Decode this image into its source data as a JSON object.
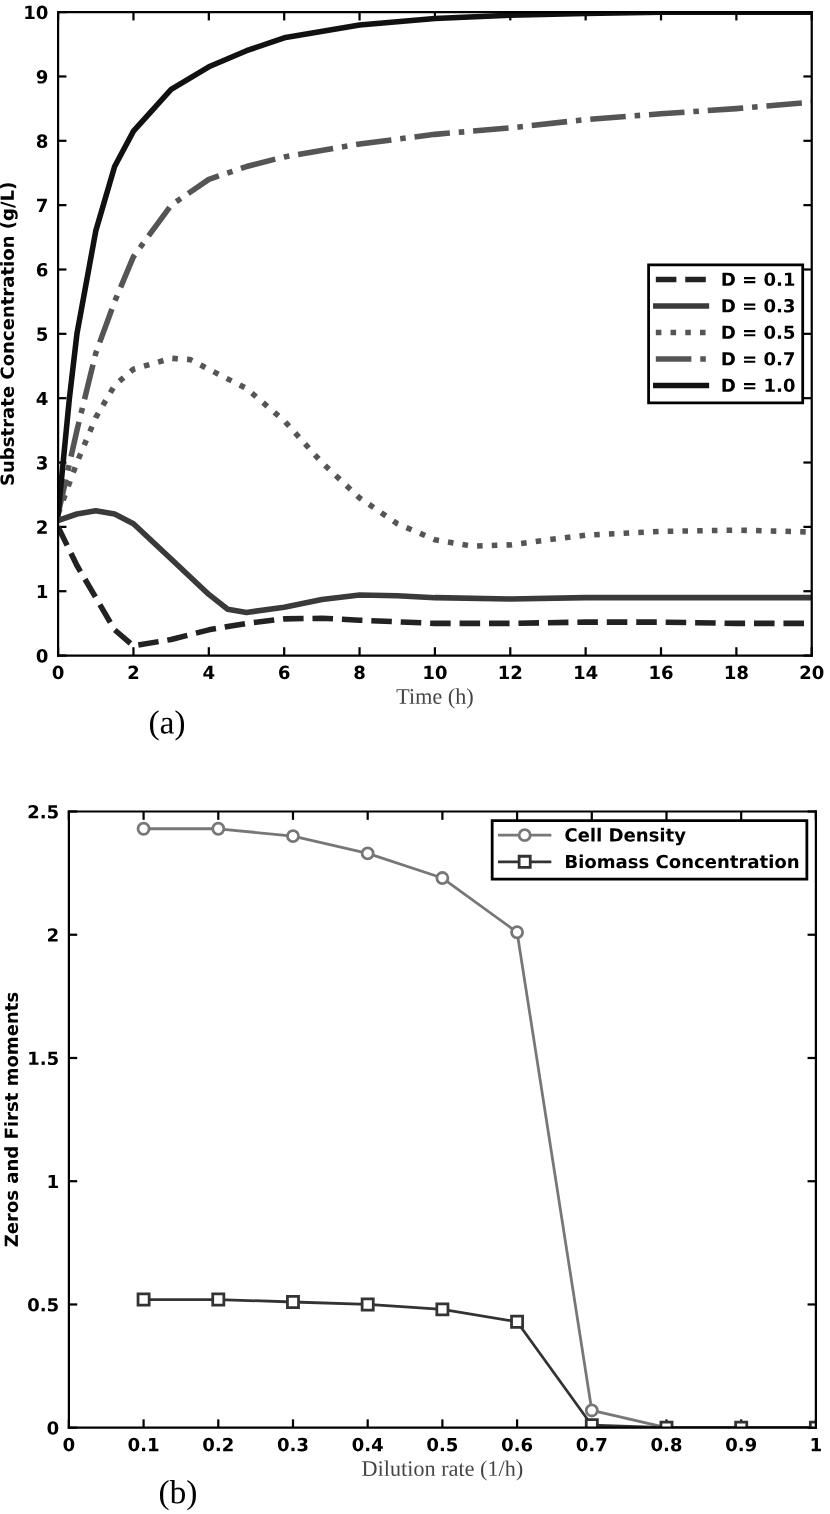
{
  "chart_data": [
    {
      "type": "line",
      "xlabel": "Time (h)",
      "ylabel": "Substrate Concentration (g/L)",
      "annotations": [
        "(a)"
      ],
      "xlim": [
        0,
        20
      ],
      "ylim": [
        0,
        10
      ],
      "xticks": [
        0,
        2,
        4,
        6,
        8,
        10,
        12,
        14,
        16,
        18,
        20
      ],
      "yticks": [
        0,
        1,
        2,
        3,
        4,
        5,
        6,
        7,
        8,
        9,
        10
      ],
      "legend": "right",
      "marker": "none",
      "series": [
        {
          "name": "D = 0.1",
          "color": "#222222",
          "line_style": "dashed",
          "x": [
            0,
            0.5,
            1,
            1.5,
            2,
            3,
            4,
            5,
            6,
            7,
            8,
            10,
            12,
            14,
            16,
            18,
            20
          ],
          "values": [
            2.0,
            1.4,
            0.9,
            0.4,
            0.15,
            0.25,
            0.4,
            0.5,
            0.57,
            0.58,
            0.55,
            0.5,
            0.5,
            0.52,
            0.52,
            0.5,
            0.5
          ]
        },
        {
          "name": "D = 0.3",
          "color": "#3a3a3a",
          "line_style": "solid",
          "x": [
            0,
            0.5,
            1,
            1.5,
            2,
            3,
            4,
            4.5,
            5,
            6,
            7,
            8,
            9,
            10,
            12,
            14,
            16,
            20
          ],
          "values": [
            2.1,
            2.2,
            2.25,
            2.2,
            2.05,
            1.5,
            0.95,
            0.72,
            0.67,
            0.75,
            0.87,
            0.94,
            0.93,
            0.9,
            0.88,
            0.9,
            0.9,
            0.9
          ]
        },
        {
          "name": "D = 0.5",
          "color": "#555555",
          "line_style": "dotted",
          "x": [
            0,
            0.5,
            1,
            1.5,
            2,
            3,
            3.5,
            4,
            5,
            6,
            7,
            8,
            9,
            10,
            11,
            12,
            13,
            14,
            16,
            18,
            20
          ],
          "values": [
            2.2,
            3.0,
            3.7,
            4.2,
            4.45,
            4.62,
            4.6,
            4.45,
            4.15,
            3.65,
            3.0,
            2.45,
            2.05,
            1.8,
            1.7,
            1.72,
            1.8,
            1.87,
            1.93,
            1.95,
            1.92
          ]
        },
        {
          "name": "D = 0.7",
          "color": "#555555",
          "line_style": "dashdot",
          "x": [
            0,
            0.5,
            1,
            1.5,
            2,
            3,
            4,
            5,
            6,
            8,
            10,
            12,
            14,
            16,
            18,
            20
          ],
          "values": [
            2.2,
            3.5,
            4.7,
            5.5,
            6.2,
            7.0,
            7.4,
            7.6,
            7.75,
            7.95,
            8.1,
            8.2,
            8.33,
            8.42,
            8.5,
            8.6
          ]
        },
        {
          "name": "D = 1.0",
          "color": "#111111",
          "line_style": "solid",
          "x": [
            0,
            0.3,
            0.5,
            1,
            1.5,
            2,
            3,
            4,
            5,
            6,
            8,
            10,
            12,
            14,
            16,
            20
          ],
          "values": [
            2.2,
            4.0,
            5.0,
            6.6,
            7.6,
            8.15,
            8.8,
            9.15,
            9.4,
            9.6,
            9.8,
            9.9,
            9.95,
            9.98,
            10,
            10
          ]
        }
      ]
    },
    {
      "type": "line",
      "xlabel": "Dilution rate (1/h)",
      "ylabel": "Zeros and First moments",
      "annotations": [
        "(b)"
      ],
      "xlim": [
        0,
        1
      ],
      "ylim": [
        0,
        2.5
      ],
      "xticks": [
        0,
        0.1,
        0.2,
        0.3,
        0.4,
        0.5,
        0.6,
        0.7,
        0.8,
        0.9,
        1
      ],
      "yticks": [
        0,
        0.5,
        1,
        1.5,
        2,
        2.5
      ],
      "legend": "top right",
      "line_style": "solid",
      "series": [
        {
          "name": "Cell Density",
          "color": "#777777",
          "marker": "circle",
          "x": [
            0.1,
            0.2,
            0.3,
            0.4,
            0.5,
            0.6,
            0.7,
            0.8,
            0.9,
            1
          ],
          "values": [
            2.43,
            2.43,
            2.4,
            2.33,
            2.23,
            2.01,
            0.07,
            0,
            0,
            0
          ]
        },
        {
          "name": "Biomass Concentration",
          "color": "#333333",
          "marker": "square",
          "x": [
            0.1,
            0.2,
            0.3,
            0.4,
            0.5,
            0.6,
            0.7,
            0.8,
            0.9,
            1
          ],
          "values": [
            0.52,
            0.52,
            0.51,
            0.5,
            0.48,
            0.43,
            0.01,
            0,
            0,
            0
          ]
        }
      ]
    }
  ]
}
